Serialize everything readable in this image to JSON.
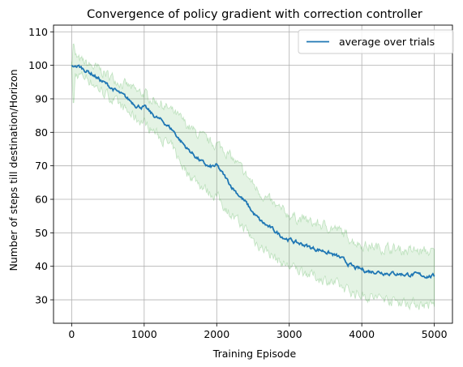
{
  "chart_data": {
    "type": "line",
    "title": "Convergence of policy gradient with correction controller",
    "xlabel": "Training Episode",
    "ylabel": "Number of steps till destination/Horizon",
    "xlim": [
      -250,
      5250
    ],
    "ylim": [
      23,
      112
    ],
    "xticks": [
      0,
      1000,
      2000,
      3000,
      4000,
      5000
    ],
    "yticks": [
      30,
      40,
      50,
      60,
      70,
      80,
      90,
      100,
      110
    ],
    "grid": true,
    "legend": {
      "placement": "top-right"
    },
    "colors": {
      "line": "#1f77b4",
      "band": "#2ca02c",
      "grid": "#b0b0b0"
    },
    "series": [
      {
        "name": "average over trials",
        "x": [
          0,
          25,
          50,
          100,
          200,
          300,
          400,
          500,
          600,
          700,
          800,
          900,
          1000,
          1100,
          1200,
          1300,
          1400,
          1500,
          1600,
          1700,
          1800,
          1900,
          2000,
          2100,
          2200,
          2300,
          2400,
          2500,
          2600,
          2700,
          2800,
          2900,
          3000,
          3100,
          3200,
          3300,
          3400,
          3500,
          3600,
          3700,
          3800,
          3900,
          4000,
          4100,
          4200,
          4300,
          4400,
          4500,
          4600,
          4700,
          4800,
          4900,
          5000
        ],
        "y": [
          100,
          99.5,
          99.8,
          99.6,
          98.5,
          97.2,
          95.5,
          94,
          92.5,
          91,
          89.5,
          88,
          87.5,
          85.5,
          84,
          82.5,
          80.5,
          77.5,
          75,
          73,
          71,
          69.5,
          70,
          67,
          64,
          61.5,
          59,
          56,
          53.5,
          52,
          50.5,
          49,
          48,
          47,
          46.5,
          45.5,
          45,
          44.5,
          43.5,
          42.5,
          41,
          39.5,
          39,
          38.5,
          38.5,
          38.2,
          38,
          37.8,
          37.6,
          37.5,
          37.3,
          37.2,
          37
        ],
        "lower": [
          100,
          86,
          97,
          97,
          96.5,
          94.5,
          92.5,
          91,
          89,
          87.5,
          85.5,
          84,
          83,
          81,
          79,
          77,
          75,
          71,
          68,
          66,
          64,
          62,
          61,
          58,
          55.5,
          53,
          51,
          48,
          46,
          44.5,
          42.5,
          41,
          40,
          39,
          38.5,
          37.5,
          36.5,
          36,
          35,
          34,
          33,
          32,
          31.5,
          31,
          30.5,
          30.5,
          30,
          29.5,
          29.2,
          29,
          28.8,
          28.5,
          28.3
        ],
        "upper": [
          100,
          108,
          102.5,
          101.5,
          100.5,
          99.5,
          98.5,
          97,
          96,
          94.5,
          93.5,
          92,
          91.5,
          90,
          89,
          87.5,
          86,
          84,
          82,
          80,
          78.5,
          77,
          76.5,
          75,
          72.5,
          70,
          67.5,
          64.5,
          62,
          60,
          58,
          56.5,
          55.5,
          54.5,
          54,
          53,
          52.5,
          52,
          51.5,
          50.5,
          49,
          47.5,
          46.5,
          46,
          45.8,
          45.5,
          45.3,
          45,
          44.8,
          44.6,
          44.5,
          44.3,
          44.2
        ]
      }
    ]
  }
}
